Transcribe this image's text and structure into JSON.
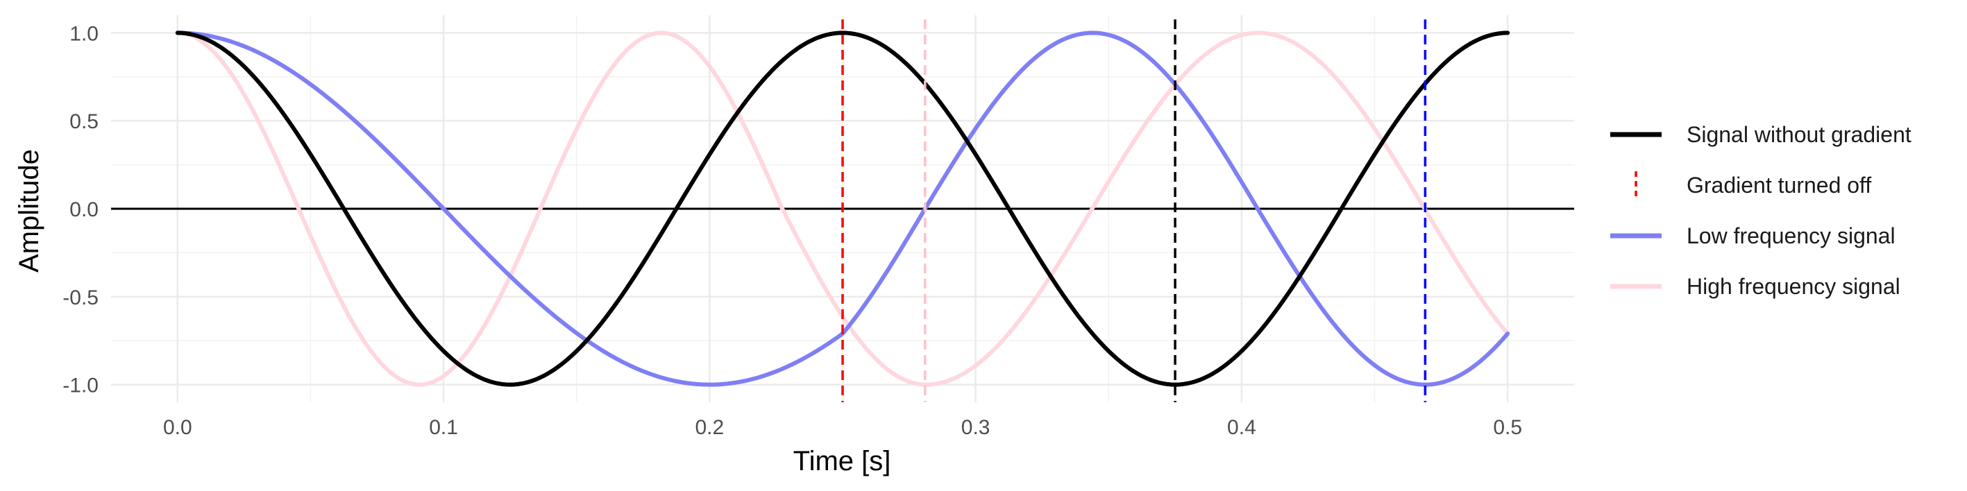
{
  "chart_data": {
    "type": "line",
    "title": "",
    "xlabel": "Time [s]",
    "ylabel": "Amplitude",
    "xlim": [
      -0.025,
      0.525
    ],
    "ylim": [
      -1.1,
      1.1
    ],
    "x_ticks": [
      0.0,
      0.1,
      0.2,
      0.3,
      0.4,
      0.5
    ],
    "x_tick_labels": [
      "0.0",
      "0.1",
      "0.2",
      "0.3",
      "0.4",
      "0.5"
    ],
    "y_ticks": [
      -1.0,
      -0.5,
      0.0,
      0.5,
      1.0
    ],
    "y_tick_labels": [
      "-1.0",
      "-0.5",
      "0.0",
      "0.5",
      "1.0"
    ],
    "grid": true,
    "legend_position": "right",
    "series": [
      {
        "name": "Signal without gradient",
        "kind": "line",
        "color": "#000000",
        "x": [
          0.0,
          0.0625,
          0.125,
          0.1875,
          0.25,
          0.3125,
          0.375,
          0.4375,
          0.5
        ],
        "y": [
          1.0,
          0.0,
          -1.0,
          0.0,
          1.0,
          0.0,
          -1.0,
          0.0,
          1.0
        ]
      },
      {
        "name": "Low frequency signal",
        "kind": "line",
        "color": "#7f7ff5",
        "x": [
          0.0,
          0.1,
          0.2,
          0.25,
          0.281,
          0.344,
          0.406,
          0.469,
          0.5
        ],
        "y": [
          1.0,
          0.0,
          -1.0,
          -0.71,
          0.0,
          1.0,
          0.0,
          -1.0,
          -0.71
        ]
      },
      {
        "name": "High frequency signal",
        "kind": "line",
        "color": "#ffd7df",
        "x": [
          0.0,
          0.0455,
          0.0909,
          0.1364,
          0.1818,
          0.2273,
          0.2813,
          0.3438,
          0.4063,
          0.4688,
          0.5
        ],
        "y": [
          1.0,
          0.0,
          -1.0,
          0.0,
          1.0,
          0.0,
          -1.0,
          0.0,
          1.0,
          0.0,
          -0.71
        ]
      },
      {
        "name": "Gradient turned off",
        "kind": "vline",
        "color": "#ff0000",
        "x": 0.25
      }
    ],
    "reference_lines": [
      {
        "x": 0.281,
        "color": "#ffc0cb"
      },
      {
        "x": 0.375,
        "color": "#000000"
      },
      {
        "x": 0.469,
        "color": "#0000ff"
      }
    ],
    "legend_order": [
      "Signal without gradient",
      "Gradient turned off",
      "Low frequency signal",
      "High frequency signal"
    ]
  }
}
